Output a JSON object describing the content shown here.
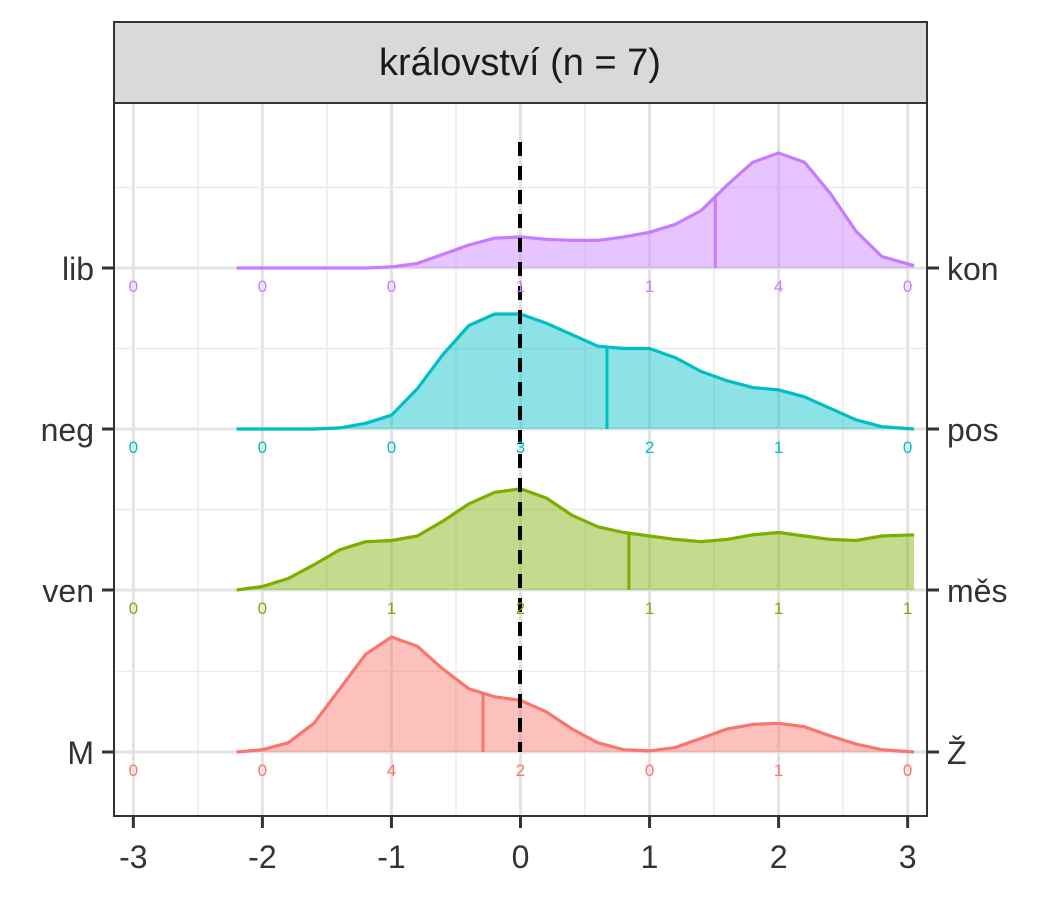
{
  "chart_data": {
    "type": "ridgeline",
    "title": "království (n = 7)",
    "x_ticks": [
      "-3",
      "-2",
      "-1",
      "0",
      "1",
      "2",
      "3"
    ],
    "xlim": [
      -3.15,
      3.15
    ],
    "reference_line_x": 0,
    "series": [
      {
        "left_label": "M",
        "right_label": "Ž",
        "color": "#F8766D",
        "mean": -0.29,
        "counts_x": [
          -3,
          -2,
          -1,
          0,
          1,
          2,
          3
        ],
        "counts": [
          "0",
          "0",
          "4",
          "2",
          "0",
          "1",
          "0"
        ],
        "density_x": [
          -2.2,
          -2.0,
          -1.8,
          -1.6,
          -1.4,
          -1.2,
          -1.0,
          -0.8,
          -0.6,
          -0.4,
          -0.2,
          0.0,
          0.2,
          0.4,
          0.6,
          0.8,
          1.0,
          1.2,
          1.4,
          1.6,
          1.8,
          2.0,
          2.2,
          2.4,
          2.6,
          2.8,
          3.05
        ],
        "density_y": [
          0.0,
          0.02,
          0.08,
          0.25,
          0.55,
          0.85,
          1.0,
          0.92,
          0.72,
          0.55,
          0.48,
          0.45,
          0.35,
          0.2,
          0.08,
          0.02,
          0.01,
          0.04,
          0.12,
          0.2,
          0.24,
          0.25,
          0.22,
          0.14,
          0.07,
          0.02,
          0.0
        ]
      },
      {
        "left_label": "ven",
        "right_label": "měs",
        "color": "#7CAE00",
        "mean": 0.84,
        "counts_x": [
          -3,
          -2,
          -1,
          0,
          1,
          2,
          3
        ],
        "counts": [
          "0",
          "0",
          "1",
          "2",
          "1",
          "1",
          "1"
        ],
        "density_x": [
          -2.2,
          -2.0,
          -1.8,
          -1.6,
          -1.4,
          -1.2,
          -1.0,
          -0.8,
          -0.6,
          -0.4,
          -0.2,
          0.0,
          0.2,
          0.4,
          0.6,
          0.8,
          1.0,
          1.2,
          1.4,
          1.6,
          1.8,
          2.0,
          2.2,
          2.4,
          2.6,
          2.8,
          3.05
        ],
        "density_y": [
          0.0,
          0.03,
          0.1,
          0.22,
          0.35,
          0.42,
          0.43,
          0.47,
          0.6,
          0.75,
          0.85,
          0.88,
          0.8,
          0.65,
          0.55,
          0.5,
          0.47,
          0.44,
          0.42,
          0.44,
          0.48,
          0.5,
          0.47,
          0.44,
          0.43,
          0.47,
          0.48
        ]
      },
      {
        "left_label": "neg",
        "right_label": "pos",
        "color": "#00BFC4",
        "mean": 0.67,
        "counts_x": [
          -3,
          -2,
          -1,
          0,
          1,
          2,
          3
        ],
        "counts": [
          "0",
          "0",
          "0",
          "3",
          "2",
          "1",
          "0"
        ],
        "density_x": [
          -2.2,
          -2.0,
          -1.8,
          -1.6,
          -1.4,
          -1.2,
          -1.0,
          -0.8,
          -0.6,
          -0.4,
          -0.2,
          0.0,
          0.2,
          0.4,
          0.6,
          0.8,
          1.0,
          1.2,
          1.4,
          1.6,
          1.8,
          2.0,
          2.2,
          2.4,
          2.6,
          2.8,
          3.05
        ],
        "density_y": [
          0.0,
          0.0,
          0.0,
          0.0,
          0.01,
          0.05,
          0.12,
          0.35,
          0.65,
          0.9,
          1.0,
          1.0,
          0.92,
          0.82,
          0.72,
          0.7,
          0.7,
          0.62,
          0.5,
          0.42,
          0.36,
          0.34,
          0.28,
          0.18,
          0.08,
          0.02,
          0.0
        ]
      },
      {
        "left_label": "lib",
        "right_label": "kon",
        "color": "#C77CFF",
        "mean": 1.51,
        "counts_x": [
          -3,
          -2,
          -1,
          0,
          1,
          2,
          3
        ],
        "counts": [
          "0",
          "0",
          "0",
          "1",
          "1",
          "4",
          "0"
        ],
        "density_x": [
          -2.2,
          -2.0,
          -1.8,
          -1.6,
          -1.4,
          -1.2,
          -1.0,
          -0.8,
          -0.6,
          -0.4,
          -0.2,
          0.0,
          0.2,
          0.4,
          0.6,
          0.8,
          1.0,
          1.2,
          1.4,
          1.6,
          1.8,
          2.0,
          2.2,
          2.4,
          2.6,
          2.8,
          3.05
        ],
        "density_y": [
          0.0,
          0.0,
          0.0,
          0.0,
          0.0,
          0.0,
          0.01,
          0.04,
          0.12,
          0.2,
          0.26,
          0.27,
          0.25,
          0.24,
          0.24,
          0.27,
          0.31,
          0.38,
          0.5,
          0.72,
          0.92,
          1.0,
          0.92,
          0.65,
          0.32,
          0.1,
          0.02
        ]
      }
    ]
  }
}
